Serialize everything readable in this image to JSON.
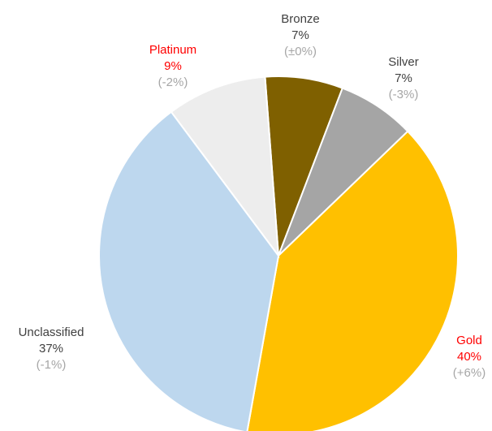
{
  "chart_data": {
    "type": "pie",
    "categories": [
      "Bronze",
      "Silver",
      "Gold",
      "Unclassified",
      "Platinum"
    ],
    "values": [
      7,
      7,
      40,
      37,
      9
    ],
    "value_labels": [
      "7%",
      "7%",
      "40%",
      "37%",
      "9%"
    ],
    "change_labels": [
      "(±0%)",
      "(-3%)",
      "(+6%)",
      "(-1%)",
      "(-2%)"
    ],
    "colors": [
      "#7f6000",
      "#a5a5a5",
      "#ffc000",
      "#bdd7ee",
      "#ededed"
    ],
    "label_colors": [
      "#404040",
      "#404040",
      "#ff0000",
      "#404040",
      "#ff0000"
    ],
    "change_color": "#a6a6a6"
  }
}
